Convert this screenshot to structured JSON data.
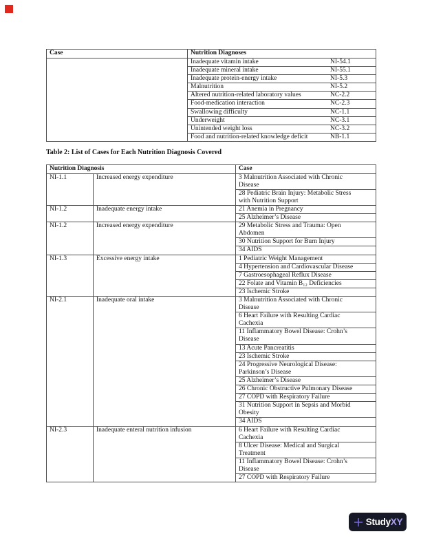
{
  "marker": {
    "color": "#e0281e"
  },
  "table1": {
    "headers": [
      "Case",
      "Nutrition Diagnoses"
    ],
    "rows": [
      {
        "diagnosis": "Inadequate vitamin intake",
        "code": "NI-54.1"
      },
      {
        "diagnosis": "Inadequate mineral intake",
        "code": "NI-55.1"
      },
      {
        "diagnosis": "Inadequate protein-energy intake",
        "code": "NI-5.3"
      },
      {
        "diagnosis": "Malnutrition",
        "code": "NI-5.2"
      },
      {
        "diagnosis": "Altered nutrition-related laboratory values",
        "code": "NC-2.2"
      },
      {
        "diagnosis": "Food-medication interaction",
        "code": "NC-2.3"
      },
      {
        "diagnosis": "Swallowing difficulty",
        "code": "NC-1.1"
      },
      {
        "diagnosis": "Underweight",
        "code": "NC-3.1"
      },
      {
        "diagnosis": "Unintended weight loss",
        "code": "NC-3.2"
      },
      {
        "diagnosis": "Food and nutrition-related knowledge deficit",
        "code": "NB-1.1"
      }
    ]
  },
  "caption": "Table 2: List of Cases for Each Nutrition Diagnosis Covered",
  "table2": {
    "headers": [
      "Nutrition Diagnosis",
      "Case"
    ],
    "groups": [
      {
        "code": "NI-1.1",
        "label": "Increased energy expenditure",
        "cases": [
          "3 Malnutrition Associated with Chronic\nDisease",
          "28 Pediatric Brain Injury: Metabolic Stress\nwith Nutrition Support"
        ]
      },
      {
        "code": "NI-1.2",
        "label": "Inadequate energy intake",
        "cases": [
          "21 Anemia in Pregnancy",
          "25 Alzheimer’s Disease"
        ]
      },
      {
        "code": "NI-1.2",
        "label": "Increased energy expenditure",
        "cases": [
          "29 Metabolic Stress and Trauma: Open\nAbdomen",
          "30 Nutrition Support for Burn Injury",
          "34 AIDS"
        ]
      },
      {
        "code": "NI-1.3",
        "label": "Excessive energy intake",
        "cases": [
          "1 Pediatric Weight Management",
          "4 Hypertension and Cardiovascular Disease",
          "7 Gastroesophageal Reflux Disease",
          "22 Folate and Vitamin B₁₂ Deficiencies",
          "23 Ischemic Stroke"
        ]
      },
      {
        "code": "NI-2.1",
        "label": "Inadequate oral intake",
        "cases": [
          "3 Malnutrition Associated with Chronic\nDisease",
          "6 Heart Failure with Resulting Cardiac\nCachexia",
          "11 Inflammatory Bowel Disease: Crohn’s\nDisease",
          "13 Acute Pancreatitis",
          "23 Ischemic Stroke",
          "24 Progressive Neurological Disease:\nParkinson’s Disease",
          "25 Alzheimer’s Disease",
          "26 Chronic Obstructive Pulmonary Disease",
          "27 COPD with Respiratory Failure",
          "31 Nutrition Support in Sepsis and Morbid\nObesity",
          "34 AIDS"
        ]
      },
      {
        "code": "NI-2.3",
        "label": "Inadequate enteral nutrition infusion",
        "cases": [
          "6 Heart Failure with Resulting Cardiac\nCachexia",
          "8 Ulcer Disease: Medical and Surgical\nTreatment",
          "11 Inflammatory Bowel Disease: Crohn’s\nDisease",
          "27 COPD with Respiratory Failure"
        ]
      }
    ]
  },
  "logo": {
    "brand_primary": "Study",
    "brand_accent": "XY",
    "background": "#171a26",
    "accent_color": "#a89bf0",
    "plus_color": "#7a68dd"
  }
}
